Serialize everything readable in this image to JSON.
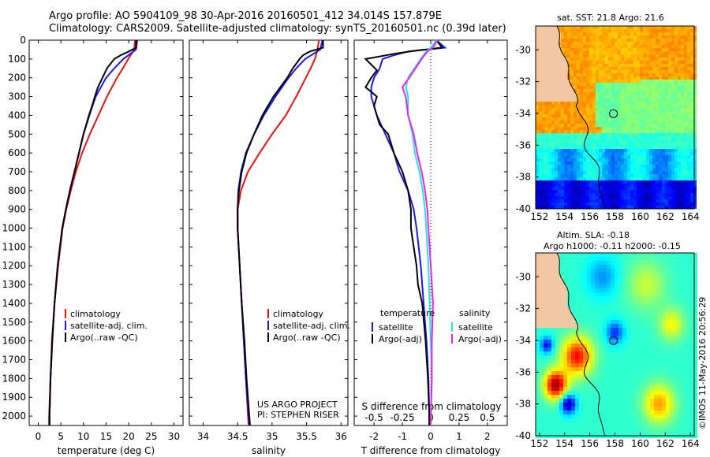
{
  "header": {
    "line1": "Argo profile: AO 5904109_98 30-Apr-2016 20160501_412 34.014S 157.879E",
    "line2": "Climatology: CARS2009. Satellite-adjusted climatology: synTS_20160501.nc (0.39d later)"
  },
  "colors": {
    "climatology": "#ee1111",
    "satellite": "#1a1aee",
    "argo": "#000000",
    "sat_s": "#22e5e5",
    "argo_s": "#ee22ee"
  },
  "chart_data": [
    {
      "type": "line",
      "id": "temperature",
      "xlabel": "temperature (deg C)",
      "ylabel": "",
      "xlim": [
        -2,
        32
      ],
      "ylim": [
        2050,
        0
      ],
      "xticks": [
        0,
        5,
        10,
        15,
        20,
        25,
        30
      ],
      "yticks": [
        0,
        100,
        200,
        300,
        400,
        500,
        600,
        700,
        800,
        900,
        1000,
        1100,
        1200,
        1300,
        1400,
        1500,
        1600,
        1700,
        1800,
        1900,
        2000
      ],
      "legend": [
        "climatology",
        "satellite-adj. clim.",
        "Argo(..raw -QC)"
      ],
      "series": [
        {
          "name": "climatology",
          "depth": [
            0,
            50,
            100,
            150,
            200,
            300,
            400,
            500,
            600,
            700,
            800,
            900,
            1000,
            1200,
            1400,
            1600,
            1800,
            2000,
            2050
          ],
          "values": [
            21.4,
            21.2,
            19.9,
            18.7,
            17.4,
            15.2,
            13.3,
            11.4,
            9.7,
            8.3,
            7.2,
            6.2,
            5.4,
            4.4,
            3.6,
            3.0,
            2.7,
            2.4,
            2.4
          ]
        },
        {
          "name": "satellite-adj. clim.",
          "depth": [
            0,
            50,
            100,
            150,
            200,
            300,
            400,
            500,
            600,
            700,
            800,
            900,
            1000,
            1200,
            1400,
            1600,
            1800,
            2000,
            2050
          ],
          "values": [
            21.9,
            21.6,
            18.8,
            16.8,
            15.0,
            12.7,
            11.3,
            10.0,
            9.0,
            8.0,
            7.0,
            6.1,
            5.3,
            4.3,
            3.6,
            3.1,
            2.7,
            2.5,
            2.5
          ]
        },
        {
          "name": "Argo(..raw -QC)",
          "depth": [
            0,
            40,
            60,
            80,
            100,
            150,
            200,
            250,
            300,
            350,
            400,
            450,
            500,
            600,
            700,
            800,
            900,
            1000,
            1200,
            1400,
            1600,
            1800,
            2000,
            2050
          ],
          "values": [
            21.6,
            21.6,
            20.0,
            18.2,
            16.8,
            15.2,
            14.2,
            13.2,
            12.5,
            11.9,
            11.2,
            10.6,
            10.0,
            9.0,
            8.0,
            7.0,
            6.1,
            5.3,
            4.3,
            3.6,
            3.1,
            2.7,
            2.5,
            2.5
          ]
        }
      ]
    },
    {
      "type": "line",
      "id": "salinity",
      "xlabel": "salinity",
      "xlim": [
        33.8,
        36.1
      ],
      "ylim": [
        2050,
        0
      ],
      "xticks": [
        34,
        34.5,
        35,
        35.5,
        36
      ],
      "legend": [
        "climatology",
        "satellite-adj. clim.",
        "Argo(..raw -QC)"
      ],
      "credit": [
        "US ARGO PROJECT",
        "PI: STEPHEN RISER"
      ],
      "series": [
        {
          "name": "climatology",
          "depth": [
            0,
            50,
            100,
            150,
            200,
            300,
            400,
            500,
            600,
            700,
            800,
            900,
            1000,
            1200,
            1400,
            1600,
            1800,
            2000,
            2050
          ],
          "values": [
            35.68,
            35.66,
            35.62,
            35.56,
            35.49,
            35.35,
            35.2,
            35.0,
            34.82,
            34.65,
            34.55,
            34.5,
            34.5,
            34.53,
            34.56,
            34.59,
            34.62,
            34.65,
            34.66
          ]
        },
        {
          "name": "satellite-adj. clim.",
          "depth": [
            0,
            50,
            100,
            150,
            200,
            300,
            400,
            500,
            600,
            700,
            800,
            900,
            1000,
            1200,
            1400,
            1600,
            1800,
            2000,
            2050
          ],
          "values": [
            35.73,
            35.7,
            35.48,
            35.35,
            35.24,
            35.05,
            34.88,
            34.74,
            34.62,
            34.55,
            34.51,
            34.5,
            34.5,
            34.53,
            34.56,
            34.59,
            34.62,
            34.66,
            34.67
          ]
        },
        {
          "name": "Argo(..raw -QC)",
          "depth": [
            0,
            40,
            60,
            80,
            100,
            150,
            200,
            250,
            300,
            400,
            500,
            600,
            700,
            800,
            900,
            1000,
            1200,
            1400,
            1600,
            1800,
            2000,
            2050
          ],
          "values": [
            35.74,
            35.74,
            35.55,
            35.45,
            35.4,
            35.3,
            35.22,
            35.12,
            35.02,
            34.86,
            34.74,
            34.63,
            34.56,
            34.52,
            34.5,
            34.5,
            34.53,
            34.56,
            34.6,
            34.63,
            34.67,
            34.68
          ]
        }
      ]
    },
    {
      "type": "line",
      "id": "difference",
      "xlabel": "T difference from climatology",
      "x2label": "S difference from climatology",
      "xlim": [
        -2.7,
        2.7
      ],
      "ylim": [
        2050,
        0
      ],
      "xticks": [
        -2,
        -1,
        0,
        1,
        2
      ],
      "x2ticks": [
        "-0.5",
        "-0.25",
        "0",
        "0.25",
        "0.5"
      ],
      "legend_titles": [
        "temperature",
        "salinity"
      ],
      "legend": [
        "satellite",
        "Argo(-adj)",
        "satellite",
        "Argo(-adj)"
      ],
      "series": [
        {
          "name": "temperature satellite",
          "depth": [
            0,
            40,
            60,
            80,
            100,
            150,
            200,
            250,
            300,
            400,
            500,
            600,
            700,
            800,
            900,
            1000,
            1200,
            1400,
            1600,
            1800,
            2000,
            2050
          ],
          "values": [
            0.2,
            0.5,
            -0.8,
            -1.3,
            -1.7,
            -1.8,
            -2.0,
            -2.1,
            -2.1,
            -1.9,
            -1.6,
            -1.3,
            -1.1,
            -0.8,
            -0.6,
            -0.5,
            -0.35,
            -0.25,
            -0.15,
            -0.08,
            -0.05,
            -0.05
          ]
        },
        {
          "name": "temperature Argo(-adj)",
          "depth": [
            0,
            40,
            55,
            70,
            100,
            130,
            160,
            200,
            250,
            300,
            350,
            400,
            450,
            500,
            600,
            700,
            800,
            900,
            1000,
            1100,
            1200,
            1300,
            1400,
            1600,
            1800,
            2000,
            2050
          ],
          "values": [
            0.2,
            0.4,
            -0.5,
            -1.2,
            -2.3,
            -2.1,
            -1.9,
            -2.1,
            -2.3,
            -1.9,
            -2.0,
            -1.9,
            -1.8,
            -1.5,
            -1.3,
            -1.0,
            -0.8,
            -0.7,
            -0.7,
            -0.6,
            -0.5,
            -0.45,
            -0.3,
            -0.18,
            -0.1,
            -0.05,
            -0.05
          ]
        },
        {
          "name": "salinity satellite",
          "depth": [
            0,
            40,
            60,
            100,
            200,
            250,
            300,
            400,
            500,
            600,
            700,
            800,
            900,
            1000,
            1200,
            1400,
            1600,
            1800,
            2000,
            2050
          ],
          "values": [
            0.05,
            0.0,
            -0.04,
            -0.09,
            -0.2,
            -0.22,
            -0.2,
            -0.2,
            -0.16,
            -0.14,
            -0.1,
            -0.07,
            -0.05,
            -0.04,
            -0.02,
            -0.01,
            0.0,
            0.01,
            0.0,
            0.0
          ]
        },
        {
          "name": "salinity Argo(-adj)",
          "depth": [
            0,
            40,
            60,
            100,
            200,
            250,
            300,
            400,
            500,
            600,
            700,
            800,
            900,
            1000,
            1200,
            1400,
            1600,
            1800,
            2000,
            2050
          ],
          "values": [
            0.06,
            0.02,
            -0.03,
            -0.08,
            -0.19,
            -0.25,
            -0.22,
            -0.2,
            -0.15,
            -0.12,
            -0.08,
            -0.05,
            -0.03,
            -0.02,
            0.0,
            0.02,
            0.01,
            0.01,
            0.0,
            0.0
          ]
        }
      ]
    },
    {
      "type": "heatmap",
      "id": "sst-map",
      "title": "sat. SST: 21.8  Argo: 21.6",
      "xticks": [
        "152",
        "154",
        "156",
        "158",
        "160",
        "162",
        "164"
      ],
      "yticks": [
        "-30",
        "-32",
        "-34",
        "-36",
        "-38",
        "-40"
      ],
      "xlim": [
        151.7,
        164.3
      ],
      "ylim": [
        -40,
        -28.5
      ]
    },
    {
      "type": "heatmap",
      "id": "sla-map",
      "title": [
        "Altim. SLA: -0.18",
        "Argo h1000: -0.11 h2000: -0.15"
      ],
      "xticks": [
        "152",
        "154",
        "156",
        "158",
        "160",
        "162",
        "164"
      ],
      "yticks": [
        "-30",
        "-32",
        "-34",
        "-36",
        "-38",
        "-40"
      ],
      "xlim": [
        151.7,
        164.3
      ],
      "ylim": [
        -40,
        -28.5
      ]
    }
  ],
  "footer": {
    "stamp": "©IMOS 11-May-2016 20:56:29"
  }
}
